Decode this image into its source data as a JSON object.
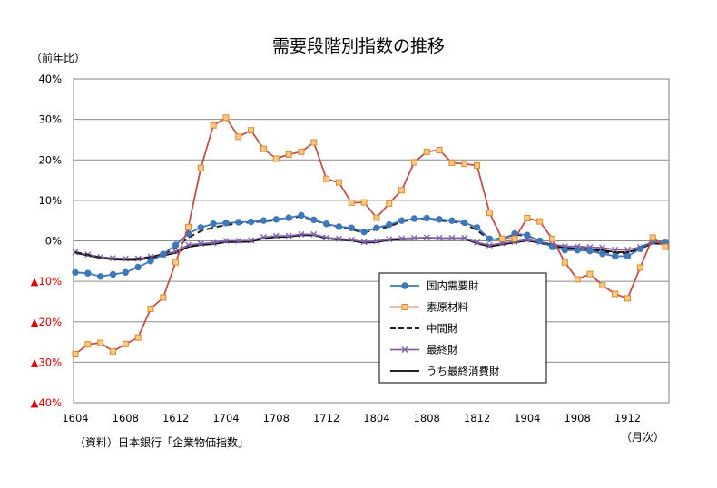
{
  "chart_data": {
    "type": "line",
    "title": "需要段階別指数の推移",
    "ylabel": "（前年比）",
    "xunit": "（月次）",
    "source": "（資料）日本銀行「企業物価指数」",
    "ylim": [
      -40,
      40
    ],
    "yticks": [
      {
        "value": 40,
        "label": "40%"
      },
      {
        "value": 30,
        "label": "30%"
      },
      {
        "value": 20,
        "label": "20%"
      },
      {
        "value": 10,
        "label": "10%"
      },
      {
        "value": 0,
        "label": "0%"
      },
      {
        "value": -10,
        "label": "▲10%"
      },
      {
        "value": -20,
        "label": "▲20%"
      },
      {
        "value": -30,
        "label": "▲30%"
      },
      {
        "value": -40,
        "label": "▲40%"
      }
    ],
    "xtick_labels": [
      "1604",
      "1608",
      "1612",
      "1704",
      "1708",
      "1712",
      "1804",
      "1808",
      "1812",
      "1904",
      "1908",
      "1912"
    ],
    "x_start": "2016-04",
    "x_end": "2020-02",
    "grid": true,
    "legend_position": "lower-center",
    "series": [
      {
        "name": "国内需要財",
        "color": "#3f78b8",
        "marker": "circle",
        "dash": "solid",
        "values": [
          -7.8,
          -8.0,
          -8.8,
          -8.3,
          -7.8,
          -6.5,
          -5.0,
          -3.3,
          -1.0,
          1.8,
          3.3,
          4.2,
          4.4,
          4.6,
          4.7,
          5.0,
          5.3,
          5.7,
          6.3,
          5.2,
          4.2,
          3.5,
          3.2,
          2.2,
          3.2,
          4.0,
          5.0,
          5.5,
          5.6,
          5.3,
          5.0,
          4.5,
          3.3,
          0.5,
          0.3,
          1.8,
          1.4,
          0.0,
          -1.5,
          -2.3,
          -2.3,
          -2.5,
          -3.2,
          -3.8,
          -3.8,
          -2.0,
          0.0,
          -0.5
        ]
      },
      {
        "name": "素原材料",
        "color": "#c0504d",
        "marker": "square",
        "dash": "solid",
        "values": [
          -28.0,
          -25.6,
          -25.2,
          -27.3,
          -25.5,
          -23.9,
          -16.8,
          -14.0,
          -5.3,
          3.4,
          18.0,
          28.5,
          30.4,
          25.7,
          27.3,
          22.7,
          20.3,
          21.3,
          22.0,
          24.3,
          15.3,
          14.4,
          9.4,
          9.5,
          5.7,
          9.2,
          12.5,
          19.4,
          22.0,
          22.4,
          19.3,
          19.0,
          18.6,
          6.9,
          0.5,
          0.5,
          5.6,
          4.8,
          0.5,
          -5.3,
          -9.5,
          -8.2,
          -11.0,
          -13.1,
          -14.2,
          -6.6,
          0.8,
          -1.5
        ]
      },
      {
        "name": "中間財",
        "color": "#222222",
        "marker": "none",
        "dash": "dashed",
        "values": [
          -2.8,
          -3.4,
          -4.2,
          -4.5,
          -4.6,
          -4.4,
          -4.0,
          -3.3,
          -1.8,
          0.8,
          2.4,
          3.3,
          3.9,
          4.3,
          4.6,
          4.8,
          5.1,
          5.6,
          6.0,
          5.2,
          4.0,
          3.5,
          2.8,
          2.0,
          2.9,
          3.5,
          4.8,
          5.3,
          5.4,
          5.0,
          4.8,
          4.2,
          2.6,
          0.3,
          0.6,
          1.5,
          1.3,
          0.0,
          -1.2,
          -1.8,
          -2.0,
          -2.0,
          -2.8,
          -3.0,
          -3.2,
          -1.8,
          0.0,
          -0.5
        ]
      },
      {
        "name": "最終財",
        "color": "#7f5fa8",
        "marker": "x",
        "dash": "solid",
        "values": [
          -2.8,
          -3.4,
          -4.0,
          -4.3,
          -4.4,
          -4.4,
          -3.9,
          -3.4,
          -2.6,
          -1.0,
          -0.7,
          -0.5,
          0.0,
          0.0,
          0.1,
          0.9,
          1.2,
          1.2,
          1.6,
          1.6,
          0.8,
          0.5,
          0.3,
          -0.3,
          -0.1,
          0.4,
          0.6,
          0.7,
          0.8,
          0.7,
          0.7,
          0.7,
          -0.4,
          -1.1,
          -0.6,
          -0.2,
          0.3,
          -0.3,
          -0.8,
          -1.4,
          -1.4,
          -1.6,
          -1.7,
          -2.2,
          -2.2,
          -1.6,
          -0.3,
          -0.5
        ]
      },
      {
        "name": "うち最終消費財",
        "color": "#000000",
        "marker": "none",
        "dash": "solid",
        "values": [
          -3.0,
          -3.6,
          -4.2,
          -4.6,
          -4.7,
          -4.7,
          -4.2,
          -3.6,
          -3.0,
          -1.5,
          -1.0,
          -0.8,
          -0.3,
          -0.3,
          -0.2,
          0.6,
          0.9,
          1.0,
          1.4,
          1.4,
          0.6,
          0.3,
          0.1,
          -0.5,
          -0.3,
          0.2,
          0.4,
          0.5,
          0.6,
          0.5,
          0.5,
          0.5,
          -0.6,
          -1.4,
          -0.9,
          -0.4,
          0.1,
          -0.5,
          -1.2,
          -1.7,
          -1.9,
          -2.1,
          -2.3,
          -2.8,
          -2.8,
          -2.0,
          -0.6,
          -0.8
        ]
      }
    ]
  }
}
